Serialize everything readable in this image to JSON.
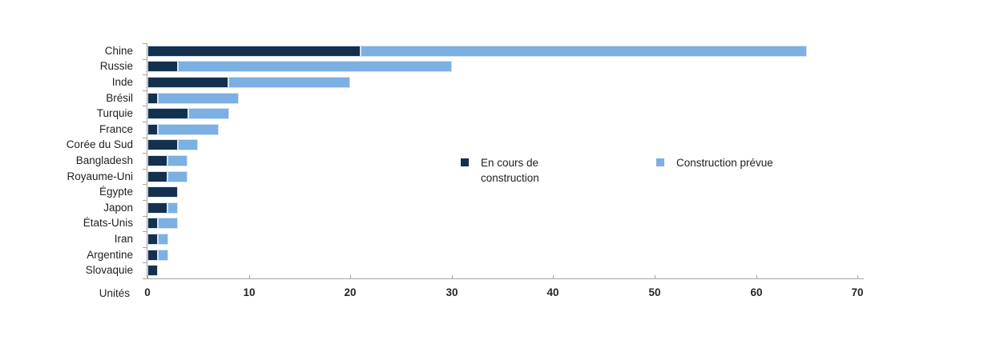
{
  "chart_data": {
    "type": "bar",
    "orientation": "horizontal",
    "stacked": true,
    "title": "",
    "xlabel": "Unités",
    "ylabel": "",
    "xlim": [
      0,
      70
    ],
    "xticks": [
      0,
      10,
      20,
      30,
      40,
      50,
      60,
      70
    ],
    "grid": false,
    "legend_position": "middle-right, inside plot",
    "categories": [
      "Chine",
      "Russie",
      "Inde",
      "Brésil",
      "Turquie",
      "France",
      "Corée du Sud",
      "Bangladesh",
      "Royaume-Uni",
      "Égypte",
      "Japon",
      "États-Unis",
      "Iran",
      "Argentine",
      "Slovaquie"
    ],
    "series": [
      {
        "name": "En cours de construction",
        "color": "#14304f",
        "values": [
          21,
          3,
          8,
          1,
          4,
          1,
          3,
          2,
          2,
          3,
          2,
          1,
          1,
          1,
          1
        ]
      },
      {
        "name": "Construction prévue",
        "color": "#7cb0e2",
        "values": [
          44,
          27,
          12,
          8,
          4,
          6,
          2,
          2,
          2,
          0,
          1,
          2,
          1,
          1,
          0
        ]
      }
    ],
    "totals": [
      65,
      30,
      20,
      9,
      8,
      7,
      5,
      4,
      4,
      3,
      3,
      3,
      2,
      2,
      1
    ]
  },
  "colors": {
    "axis": "#a6a6a6",
    "text": "#262626",
    "bar_border": "#d4e2f0",
    "background": "#ffffff"
  }
}
